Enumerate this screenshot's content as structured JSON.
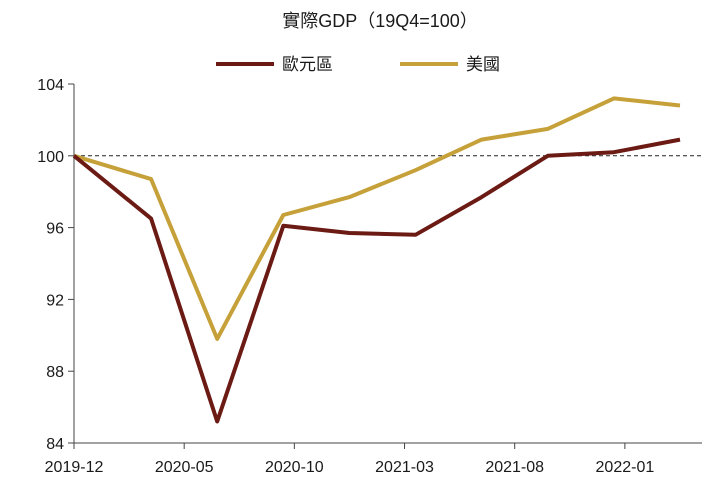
{
  "chart_data": {
    "type": "line",
    "title": "實際GDP（19Q4=100）",
    "x_tick_labels": [
      "2019-12",
      "2020-05",
      "2020-10",
      "2021-03",
      "2021-08",
      "2022-01"
    ],
    "x_tick_months": [
      0,
      5,
      10,
      15,
      20,
      25
    ],
    "x_range": [
      0,
      28.5
    ],
    "ylim": [
      84,
      104
    ],
    "y_ticks": [
      84,
      88,
      92,
      96,
      100,
      104
    ],
    "reference_line": 100,
    "series": [
      {
        "name": "歐元區",
        "color": "#6b1a14",
        "x": [
          0,
          3.5,
          6.5,
          9.5,
          12.5,
          15.5,
          18.5,
          21.5,
          24.5,
          27.5
        ],
        "values": [
          100,
          96.5,
          85.2,
          96.1,
          95.7,
          95.6,
          97.7,
          100.0,
          100.2,
          100.9
        ]
      },
      {
        "name": "美國",
        "color": "#c6a139",
        "x": [
          0,
          3.5,
          6.5,
          9.5,
          12.5,
          15.5,
          18.5,
          21.5,
          24.5,
          27.5
        ],
        "values": [
          100,
          98.7,
          89.8,
          96.7,
          97.7,
          99.2,
          100.9,
          101.5,
          103.2,
          102.8
        ]
      }
    ]
  }
}
